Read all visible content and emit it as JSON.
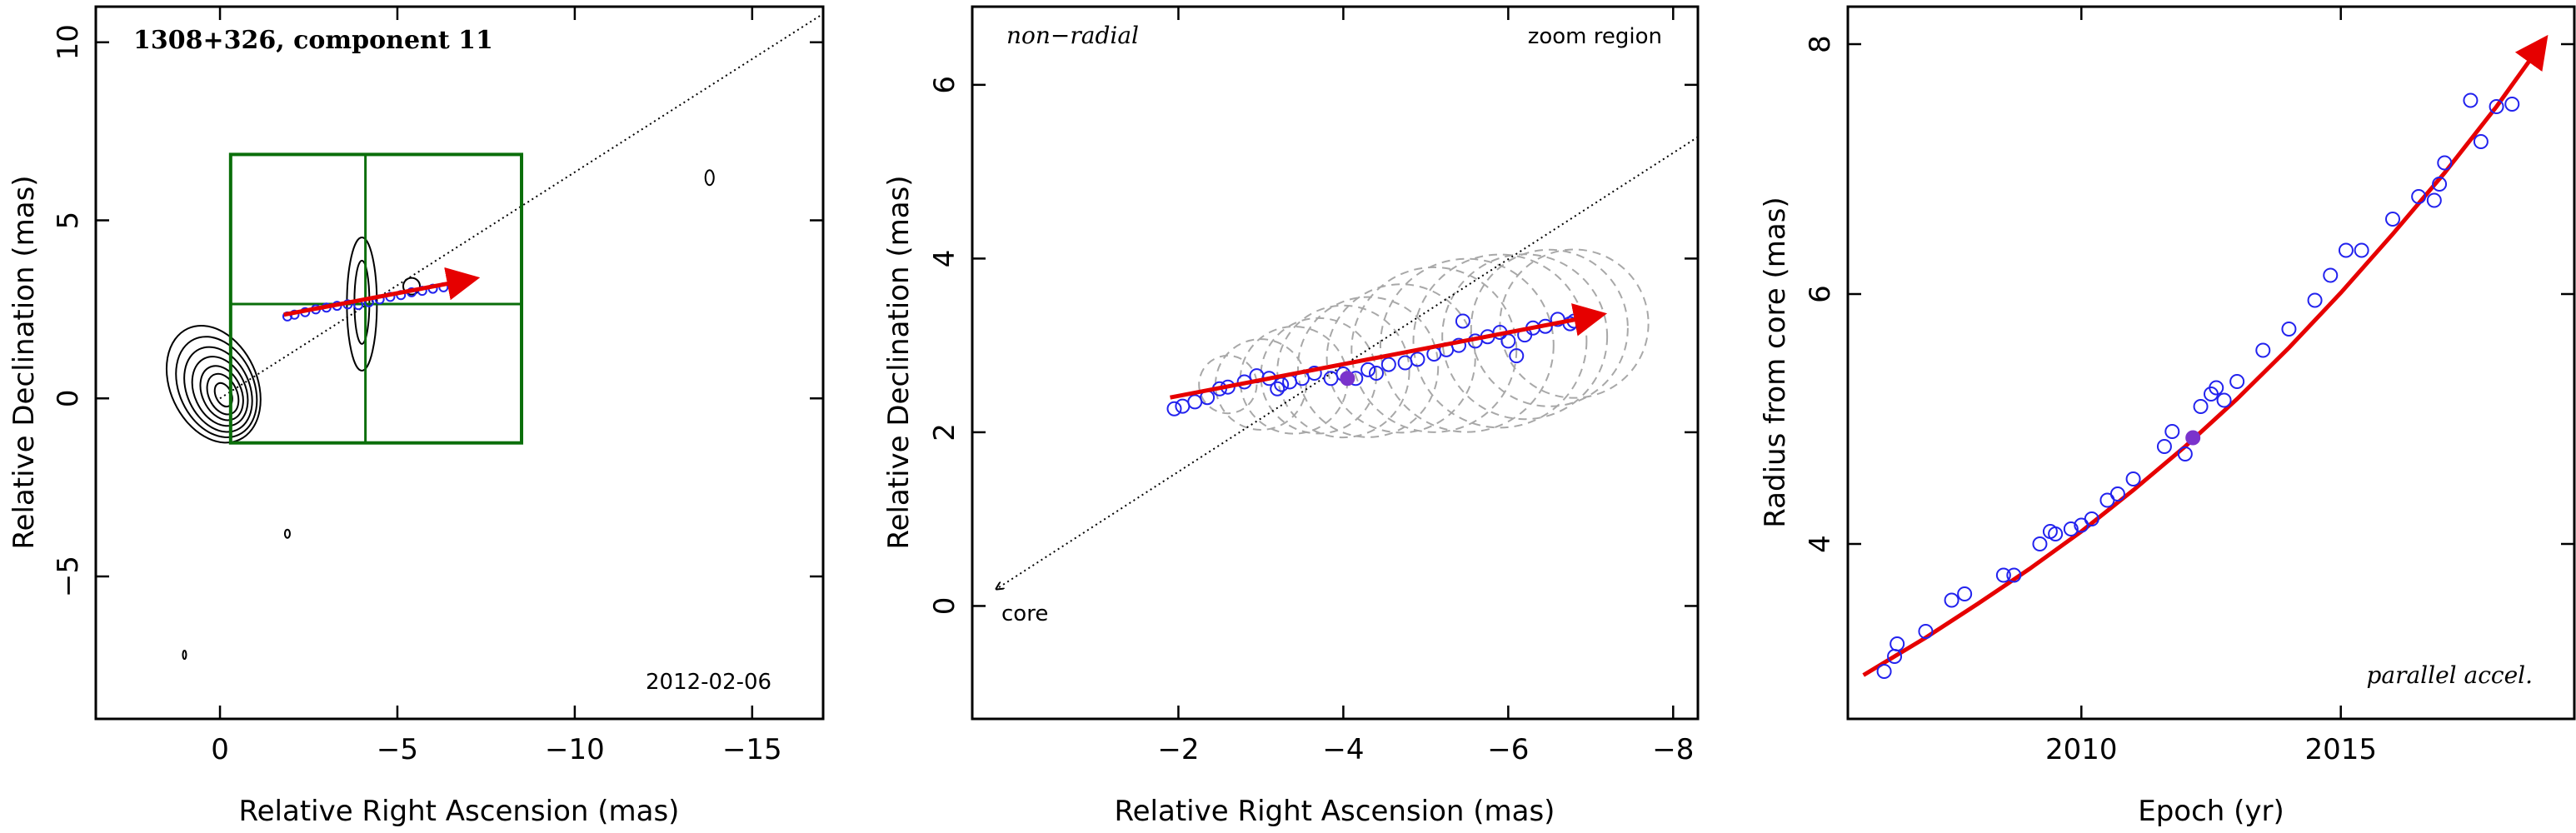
{
  "chart_data": [
    {
      "type": "scatter",
      "panel": "left",
      "title": "1308+326, component 11",
      "xlabel": "Relative Right Ascension (mas)",
      "ylabel": "Relative Declination (mas)",
      "xlim": [
        3.5,
        -17
      ],
      "ylim": [
        -9,
        11
      ],
      "x_ticks": [
        0,
        -5,
        -10,
        -15
      ],
      "x_tick_labels": [
        "0",
        "−5",
        "−10",
        "−15"
      ],
      "y_ticks": [
        -5,
        0,
        5,
        10
      ],
      "y_tick_labels": [
        "−5",
        "0",
        "5",
        "10"
      ],
      "date_label": "2012-02-06",
      "zoom_box": {
        "x": [
          -0.3,
          -8.5
        ],
        "y": [
          -1.25,
          6.85
        ],
        "cross_x": -4.1,
        "cross_y": 2.65
      },
      "radial_line": {
        "x": [
          0,
          -17
        ],
        "y": [
          0,
          10.8
        ]
      },
      "fit_arrow": {
        "x": [
          -1.8,
          -7.1
        ],
        "y": [
          2.35,
          3.35
        ]
      },
      "core_ellipses": [
        {
          "cx": -0.1,
          "cy": 0.1,
          "rx": 0.22,
          "ry": 0.35
        },
        {
          "cx": -0.08,
          "cy": 0.12,
          "rx": 0.4,
          "ry": 0.6
        },
        {
          "cx": -0.05,
          "cy": 0.15,
          "rx": 0.55,
          "ry": 0.8
        },
        {
          "cx": 0.0,
          "cy": 0.2,
          "rx": 0.72,
          "ry": 1.02
        },
        {
          "cx": 0.05,
          "cy": 0.25,
          "rx": 0.88,
          "ry": 1.25
        },
        {
          "cx": 0.1,
          "cy": 0.32,
          "rx": 1.05,
          "ry": 1.48
        },
        {
          "cx": 0.18,
          "cy": 0.4,
          "rx": 1.22,
          "ry": 1.72
        }
      ],
      "markers": {
        "x": [
          -1.9,
          -2.1,
          -2.4,
          -2.7,
          -3.0,
          -3.3,
          -3.6,
          -3.9,
          -4.2,
          -4.5,
          -4.8,
          -5.1,
          -5.4,
          -5.7,
          -6.0,
          -6.3,
          -6.6,
          -6.8
        ],
        "y": [
          2.3,
          2.35,
          2.42,
          2.5,
          2.55,
          2.6,
          2.64,
          2.62,
          2.7,
          2.78,
          2.85,
          2.9,
          2.98,
          3.02,
          3.08,
          3.12,
          3.18,
          3.22
        ]
      }
    },
    {
      "type": "scatter",
      "panel": "middle",
      "title": "",
      "xlabel": "Relative Right Ascension (mas)",
      "ylabel": "Relative Declination (mas)",
      "xlim": [
        0.5,
        -8.3
      ],
      "ylim": [
        -1.3,
        6.9
      ],
      "x_ticks": [
        -2,
        -4,
        -6,
        -8
      ],
      "x_tick_labels": [
        "−2",
        "−4",
        "−6",
        "−8"
      ],
      "y_ticks": [
        0,
        2,
        4,
        6
      ],
      "y_tick_labels": [
        "0",
        "2",
        "4",
        "6"
      ],
      "label_top_left": "non−radial",
      "label_top_right": "zoom region",
      "core_label": "core",
      "radial_line": {
        "x": [
          0.2,
          -8.3
        ],
        "y": [
          0.2,
          5.4
        ]
      },
      "fit_arrow": {
        "x": [
          -1.9,
          -7.1
        ],
        "y": [
          2.4,
          3.35
        ]
      },
      "highlight_point": {
        "x": -4.05,
        "y": 2.62
      },
      "points": {
        "x": [
          -1.95,
          -2.05,
          -2.2,
          -2.35,
          -2.5,
          -2.6,
          -2.8,
          -2.95,
          -3.1,
          -3.2,
          -3.25,
          -3.35,
          -3.5,
          -3.65,
          -3.85,
          -4.0,
          -4.15,
          -4.3,
          -4.4,
          -4.55,
          -4.75,
          -4.9,
          -5.1,
          -5.25,
          -5.4,
          -5.45,
          -5.6,
          -5.75,
          -5.9,
          -6.0,
          -6.1,
          -6.2,
          -6.3,
          -6.45,
          -6.6,
          -6.75,
          -6.8
        ],
        "y": [
          2.27,
          2.3,
          2.35,
          2.4,
          2.5,
          2.52,
          2.58,
          2.65,
          2.62,
          2.5,
          2.55,
          2.58,
          2.62,
          2.68,
          2.62,
          2.67,
          2.62,
          2.72,
          2.68,
          2.78,
          2.8,
          2.84,
          2.9,
          2.95,
          3.0,
          3.28,
          3.05,
          3.1,
          3.15,
          3.05,
          2.88,
          3.12,
          3.2,
          3.22,
          3.3,
          3.25,
          3.28
        ]
      },
      "ellipses": [
        {
          "cx": -2.6,
          "cy": 2.55,
          "r": 0.35
        },
        {
          "cx": -3.0,
          "cy": 2.55,
          "r": 0.55
        },
        {
          "cx": -3.4,
          "cy": 2.6,
          "r": 0.65
        },
        {
          "cx": -3.7,
          "cy": 2.65,
          "r": 0.7
        },
        {
          "cx": -4.0,
          "cy": 2.7,
          "r": 0.8
        },
        {
          "cx": -4.3,
          "cy": 2.75,
          "r": 0.85
        },
        {
          "cx": -4.7,
          "cy": 2.85,
          "r": 0.9
        },
        {
          "cx": -5.1,
          "cy": 2.95,
          "r": 1.0
        },
        {
          "cx": -5.5,
          "cy": 3.0,
          "r": 1.05
        },
        {
          "cx": -5.9,
          "cy": 3.05,
          "r": 1.05
        },
        {
          "cx": -6.2,
          "cy": 3.1,
          "r": 1.0
        },
        {
          "cx": -6.5,
          "cy": 3.2,
          "r": 0.95
        },
        {
          "cx": -6.8,
          "cy": 3.25,
          "r": 0.9
        }
      ]
    },
    {
      "type": "scatter",
      "panel": "right",
      "title": "",
      "xlabel": "Epoch (yr)",
      "ylabel": "Radius from core (mas)",
      "xlim": [
        2005.5,
        2019.5
      ],
      "ylim": [
        2.6,
        8.3
      ],
      "x_ticks": [
        2010,
        2015
      ],
      "x_tick_labels": [
        "2010",
        "2015"
      ],
      "y_ticks": [
        4,
        6,
        8
      ],
      "y_tick_labels": [
        "4",
        "6",
        "8"
      ],
      "label_bottom_right": "parallel accel.",
      "fit_curve": {
        "x": [
          2005.8,
          2007,
          2008,
          2009,
          2010,
          2011,
          2012,
          2013,
          2014,
          2015,
          2016,
          2017,
          2018,
          2018.9
        ],
        "y": [
          2.95,
          3.25,
          3.52,
          3.8,
          4.1,
          4.43,
          4.78,
          5.16,
          5.57,
          6.01,
          6.48,
          6.97,
          7.5,
          8.02
        ]
      },
      "highlight_point": {
        "x": 2012.15,
        "y": 4.85
      },
      "points": {
        "x": [
          2006.2,
          2006.4,
          2006.45,
          2007.0,
          2007.5,
          2007.75,
          2008.5,
          2008.7,
          2009.2,
          2009.4,
          2009.5,
          2009.8,
          2010.0,
          2010.2,
          2010.5,
          2010.7,
          2011.0,
          2011.6,
          2011.75,
          2012.0,
          2012.3,
          2012.5,
          2012.6,
          2012.75,
          2013.0,
          2013.5,
          2014.0,
          2014.5,
          2014.8,
          2015.1,
          2015.4,
          2016.0,
          2016.5,
          2016.8,
          2016.9,
          2017.0,
          2017.5,
          2017.7,
          2018.0,
          2018.3
        ],
        "y": [
          2.98,
          3.1,
          3.2,
          3.3,
          3.55,
          3.6,
          3.75,
          3.75,
          4.0,
          4.1,
          4.08,
          4.12,
          4.15,
          4.2,
          4.35,
          4.4,
          4.52,
          4.78,
          4.9,
          4.72,
          5.1,
          5.2,
          5.25,
          5.15,
          5.3,
          5.55,
          5.72,
          5.95,
          6.15,
          6.35,
          6.35,
          6.6,
          6.78,
          6.75,
          6.88,
          7.05,
          7.55,
          7.22,
          7.5,
          7.52
        ]
      }
    }
  ]
}
